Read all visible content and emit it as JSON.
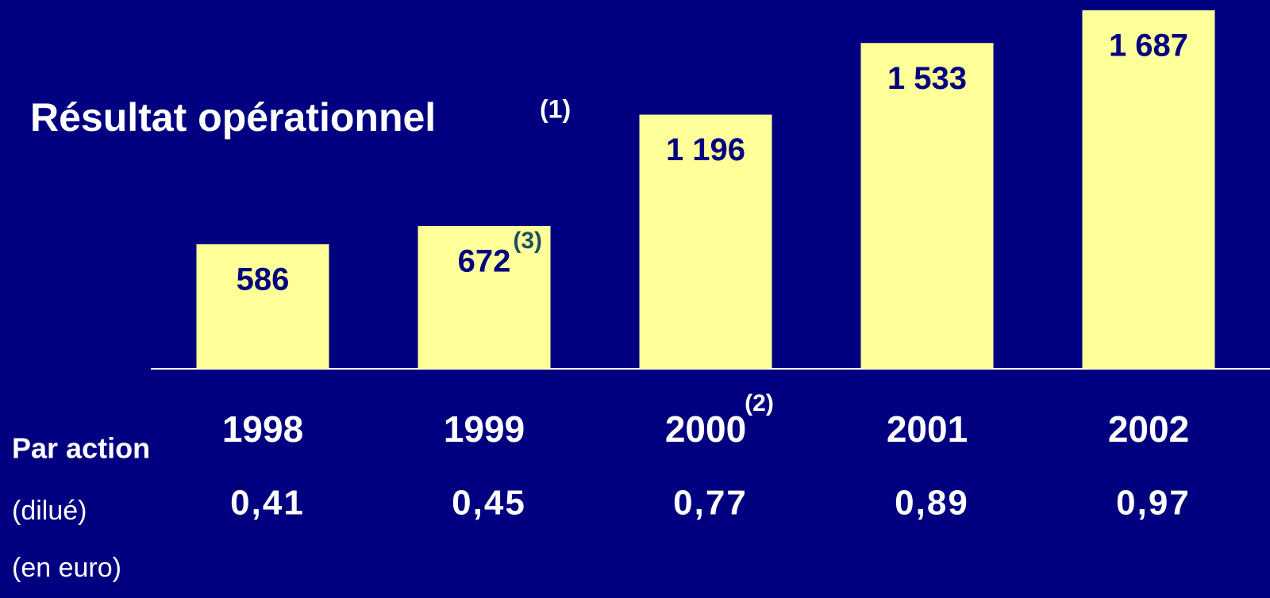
{
  "chart_data": {
    "type": "bar",
    "title": "Résultat opérationnel",
    "title_note": "(1)",
    "categories": [
      "1998",
      "1999",
      "2000",
      "2001",
      "2002"
    ],
    "category_notes": [
      null,
      null,
      "(2)",
      null,
      null
    ],
    "values": [
      586,
      672,
      1196,
      1533,
      1687
    ],
    "value_labels": [
      "586",
      "672",
      "1 196",
      "1 533",
      "1 687"
    ],
    "value_notes": [
      null,
      "(3)",
      null,
      null,
      null
    ],
    "color": "#ffff99",
    "per_share": {
      "title": "Par action",
      "notes": [
        "(dilué)",
        "(en euro)"
      ],
      "values": [
        "0,41",
        "0,45",
        "0,77",
        "0,89",
        "0,97"
      ]
    }
  }
}
